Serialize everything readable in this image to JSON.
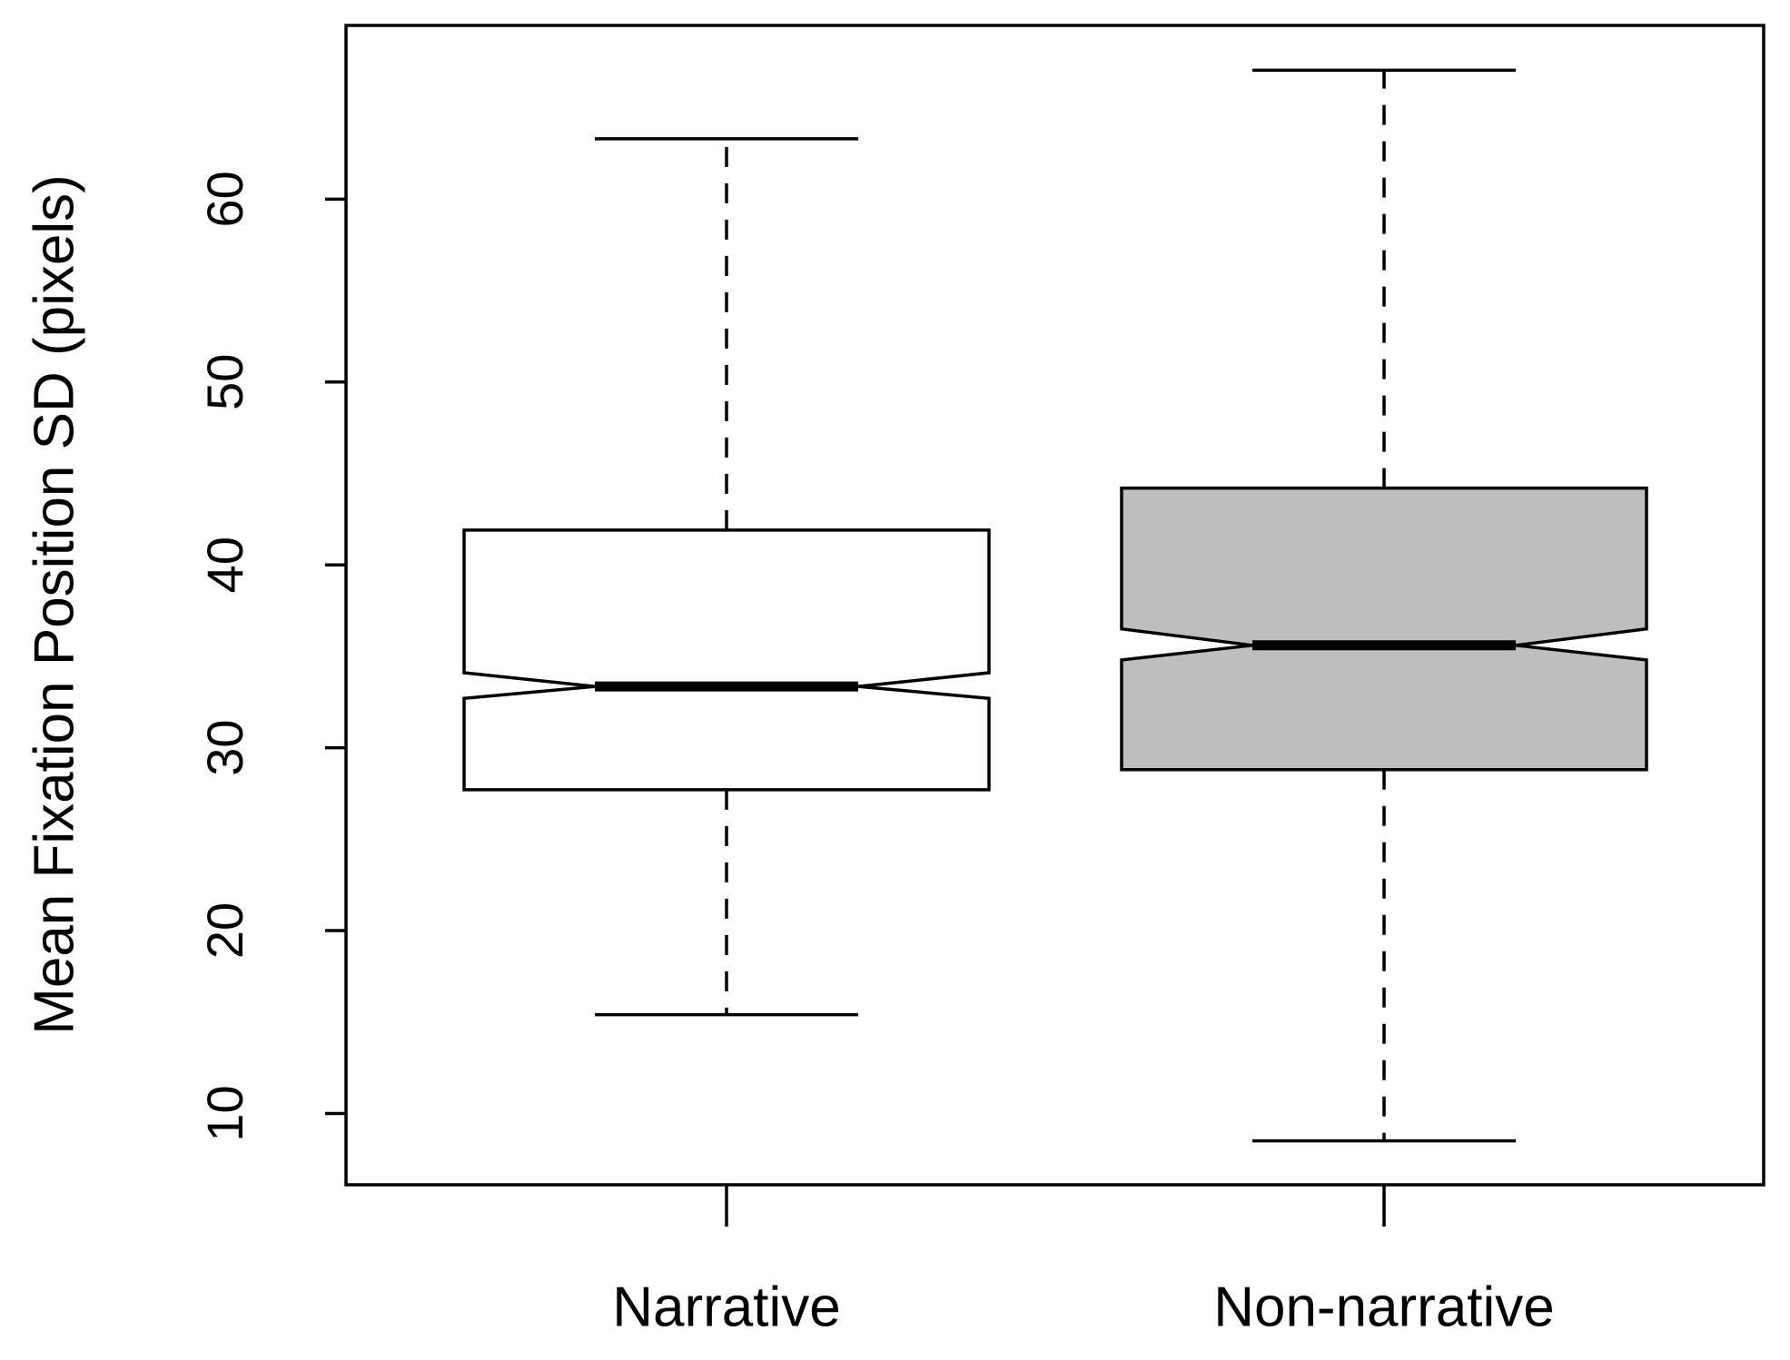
{
  "chart_data": {
    "type": "boxplot",
    "notched": true,
    "y_label": "Mean Fixation Position SD (pixels)",
    "categories": [
      "Narrative",
      "Non-narrative"
    ],
    "boxes": [
      {
        "low": 15.4,
        "q1": 27.7,
        "notch_low": 32.7,
        "median": 33.35,
        "notch_high": 34.1,
        "q3": 41.9,
        "high": 63.3,
        "color": "#ffffff"
      },
      {
        "low": 8.5,
        "q1": 28.8,
        "notch_low": 34.8,
        "median": 35.6,
        "notch_high": 36.5,
        "q3": 44.2,
        "high": 67.05,
        "color": "#bebebe"
      }
    ],
    "ylim": [
      6.1,
      69.5
    ],
    "yticks": [
      10,
      20,
      30,
      40,
      50,
      60
    ]
  }
}
